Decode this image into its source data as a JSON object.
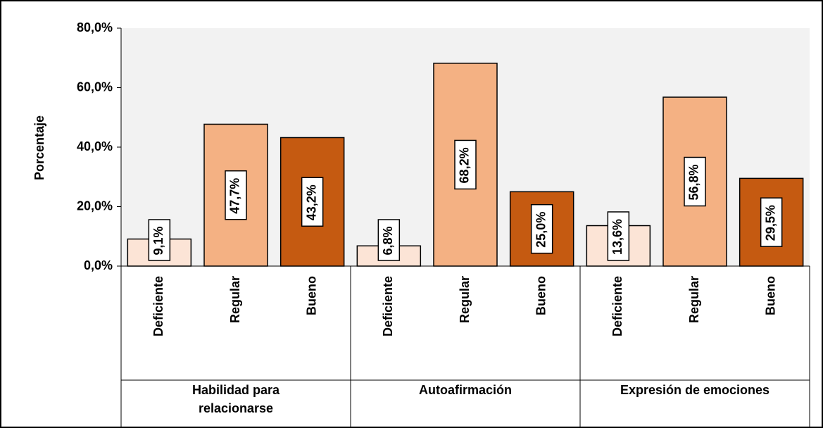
{
  "chart_data": {
    "type": "bar",
    "ylabel": "Porcentaje",
    "ylim": [
      0,
      80
    ],
    "yticks": [
      {
        "value": 0,
        "label": "0,0%"
      },
      {
        "value": 20,
        "label": "20,0%"
      },
      {
        "value": 40,
        "label": "40,0%"
      },
      {
        "value": 60,
        "label": "60,0%"
      },
      {
        "value": 80,
        "label": "80,0%"
      }
    ],
    "colors": [
      "#fce4d6",
      "#f4b183",
      "#c55a11"
    ],
    "groups": [
      {
        "name": "Habilidad para relacionarse",
        "categories": [
          "Deficiente",
          "Regular",
          "Bueno"
        ],
        "values": [
          9.1,
          47.7,
          43.2
        ],
        "value_labels": [
          "9,1%",
          "47,7%",
          "43,2%"
        ]
      },
      {
        "name": "Autoafirmación",
        "categories": [
          "Deficiente",
          "Regular",
          "Bueno"
        ],
        "values": [
          6.8,
          68.2,
          25.0
        ],
        "value_labels": [
          "6,8%",
          "68,2%",
          "25,0%"
        ]
      },
      {
        "name": "Expresión de emociones",
        "categories": [
          "Deficiente",
          "Regular",
          "Bueno"
        ],
        "values": [
          13.6,
          56.8,
          29.5
        ],
        "value_labels": [
          "13,6%",
          "56,8%",
          "29,5%"
        ]
      }
    ]
  }
}
